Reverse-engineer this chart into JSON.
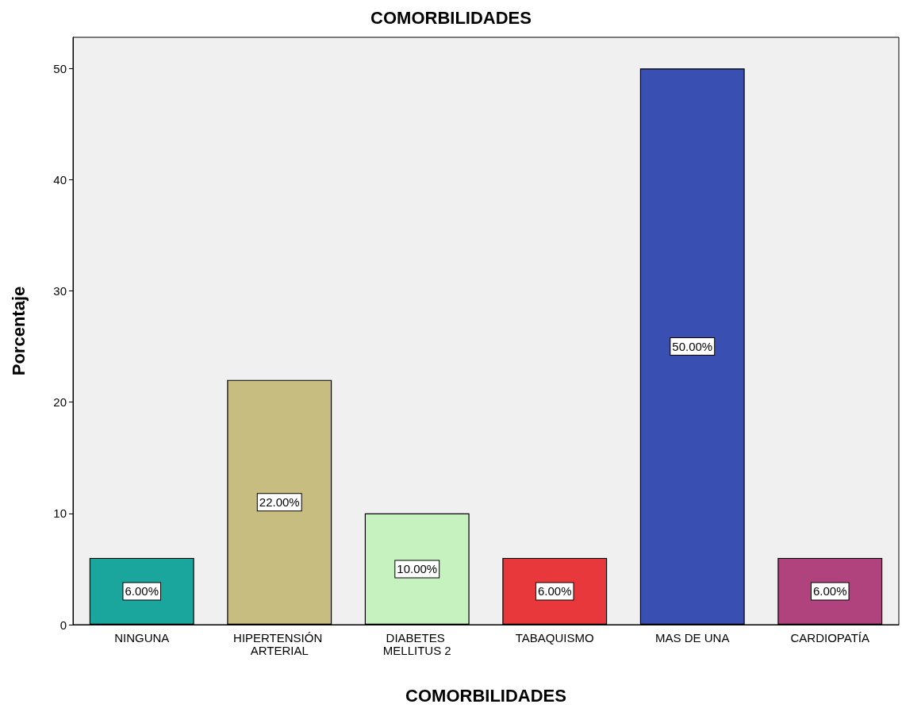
{
  "chart_data": {
    "type": "bar",
    "title": "COMORBILIDADES",
    "xlabel": "COMORBILIDADES",
    "ylabel": "Porcentaje",
    "categories": [
      "NINGUNA",
      "HIPERTENSIÓN ARTERIAL",
      "DIABETES MELLITUS 2",
      "TABAQUISMO",
      "MAS DE UNA",
      "CARDIOPATÍA"
    ],
    "values": [
      6,
      22,
      10,
      6,
      50,
      6
    ],
    "colors": [
      "#1aa59d",
      "#c8bd80",
      "#c6f2c0",
      "#e8383c",
      "#3a4fb2",
      "#b0437e"
    ],
    "value_labels": [
      "6.00%",
      "22.00%",
      "10.00%",
      "6.00%",
      "50.00%",
      "6.00%"
    ],
    "ylim": [
      0,
      52.8
    ],
    "yticks": [
      0,
      10,
      20,
      30,
      40,
      50
    ],
    "grid": false
  }
}
